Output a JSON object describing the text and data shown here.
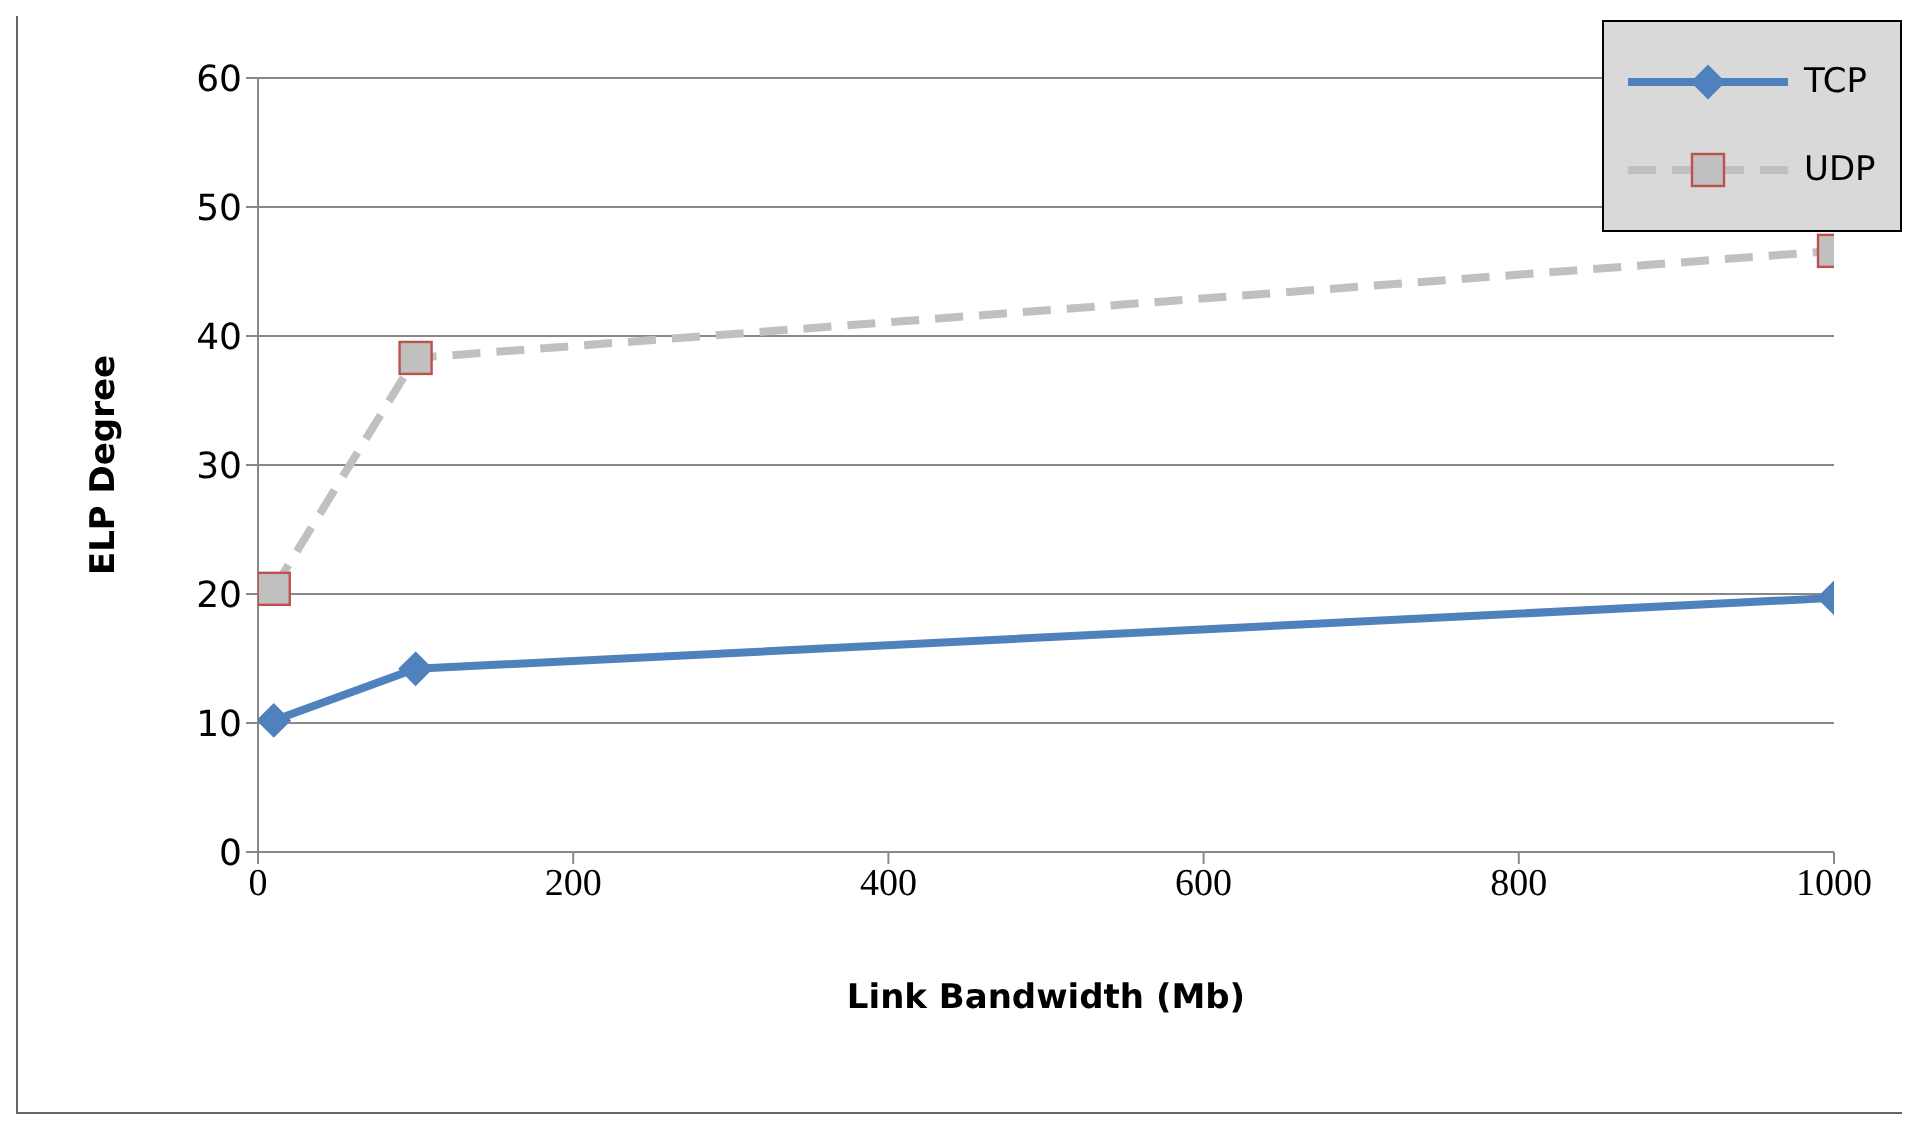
{
  "chart_data": {
    "type": "line",
    "xlabel": "Link Bandwidth (Mb)",
    "ylabel": "ELP Degree",
    "x": [
      10,
      100,
      1000
    ],
    "series": [
      {
        "name": "TCP",
        "color": "#4f81bd",
        "values": [
          10.2,
          14.2,
          19.7
        ],
        "marker": "diamond",
        "line_style": "solid"
      },
      {
        "name": "UDP",
        "color": "#c0c0c0",
        "values": [
          20.4,
          38.3,
          46.6
        ],
        "marker": "square",
        "line_style": "dashed"
      }
    ],
    "xlim": [
      0,
      1000
    ],
    "xticks": [
      0,
      200,
      400,
      600,
      800,
      1000
    ],
    "ylim": [
      0,
      60
    ],
    "yticks": [
      0,
      10,
      20,
      30,
      40,
      50,
      60
    ],
    "grid": "y",
    "legend": "top right"
  }
}
